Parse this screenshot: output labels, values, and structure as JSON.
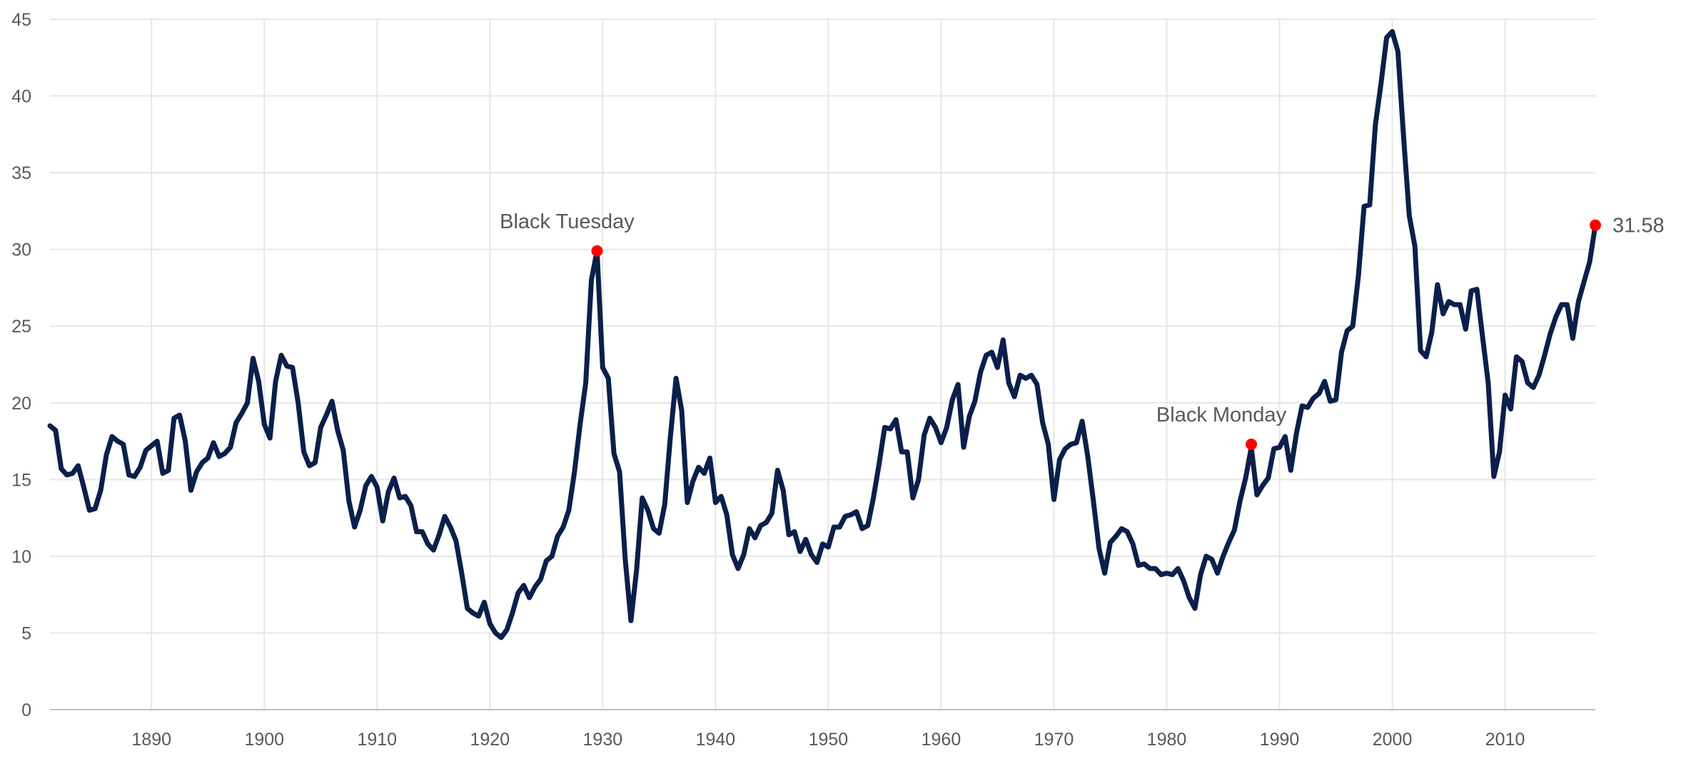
{
  "chart_data": {
    "type": "line",
    "title": "",
    "xlabel": "",
    "ylabel": "",
    "xlim": [
      1881,
      2018
    ],
    "ylim": [
      0,
      45
    ],
    "x_ticks": [
      1890,
      1900,
      1910,
      1920,
      1930,
      1940,
      1950,
      1960,
      1970,
      1980,
      1990,
      2000,
      2010
    ],
    "y_ticks": [
      0,
      5,
      10,
      15,
      20,
      25,
      30,
      35,
      40,
      45
    ],
    "grid": true,
    "legend": "none",
    "colors": {
      "line": "#0b1f4b",
      "marker": "#ff0000",
      "grid": "#e6e6e6",
      "text": "#595959"
    },
    "series": [
      {
        "x": [
          1881.0,
          1881.5,
          1882.0,
          1882.5,
          1883.0,
          1883.5,
          1884.0,
          1884.5,
          1885.0,
          1885.5,
          1886.0,
          1886.5,
          1887.0,
          1887.5,
          1888.0,
          1888.5,
          1889.0,
          1889.5,
          1890.0,
          1890.5,
          1891.0,
          1891.5,
          1892.0,
          1892.5,
          1893.0,
          1893.5,
          1894.0,
          1894.5,
          1895.0,
          1895.5,
          1896.0,
          1896.5,
          1897.0,
          1897.5,
          1898.0,
          1898.5,
          1899.0,
          1899.5,
          1900.0,
          1900.5,
          1901.0,
          1901.5,
          1902.0,
          1902.5,
          1903.0,
          1903.5,
          1904.0,
          1904.5,
          1905.0,
          1905.5,
          1906.0,
          1906.5,
          1907.0,
          1907.5,
          1908.0,
          1908.5,
          1909.0,
          1909.5,
          1910.0,
          1910.5,
          1911.0,
          1911.5,
          1912.0,
          1912.5,
          1913.0,
          1913.5,
          1914.0,
          1914.5,
          1915.0,
          1915.5,
          1916.0,
          1916.5,
          1917.0,
          1917.5,
          1918.0,
          1918.5,
          1919.0,
          1919.5,
          1920.0,
          1920.5,
          1921.0,
          1921.5,
          1922.0,
          1922.5,
          1923.0,
          1923.5,
          1924.0,
          1924.5,
          1925.0,
          1925.5,
          1926.0,
          1926.5,
          1927.0,
          1927.5,
          1928.0,
          1928.5,
          1929.0,
          1929.5,
          1930.0,
          1930.5,
          1931.0,
          1931.5,
          1932.0,
          1932.5,
          1933.0,
          1933.5,
          1934.0,
          1934.5,
          1935.0,
          1935.5,
          1936.0,
          1936.5,
          1937.0,
          1937.5,
          1938.0,
          1938.5,
          1939.0,
          1939.5,
          1940.0,
          1940.5,
          1941.0,
          1941.5,
          1942.0,
          1942.5,
          1943.0,
          1943.5,
          1944.0,
          1944.5,
          1945.0,
          1945.5,
          1946.0,
          1946.5,
          1947.0,
          1947.5,
          1948.0,
          1948.5,
          1949.0,
          1949.5,
          1950.0,
          1950.5,
          1951.0,
          1951.5,
          1952.0,
          1952.5,
          1953.0,
          1953.5,
          1954.0,
          1954.5,
          1955.0,
          1955.5,
          1956.0,
          1956.5,
          1957.0,
          1957.5,
          1958.0,
          1958.5,
          1959.0,
          1959.5,
          1960.0,
          1960.5,
          1961.0,
          1961.5,
          1962.0,
          1962.5,
          1963.0,
          1963.5,
          1964.0,
          1964.5,
          1965.0,
          1965.5,
          1966.0,
          1966.5,
          1967.0,
          1967.5,
          1968.0,
          1968.5,
          1969.0,
          1969.5,
          1970.0,
          1970.5,
          1971.0,
          1971.5,
          1972.0,
          1972.5,
          1973.0,
          1973.5,
          1974.0,
          1974.5,
          1975.0,
          1975.5,
          1976.0,
          1976.5,
          1977.0,
          1977.5,
          1978.0,
          1978.5,
          1979.0,
          1979.5,
          1980.0,
          1980.5,
          1981.0,
          1981.5,
          1982.0,
          1982.5,
          1983.0,
          1983.5,
          1984.0,
          1984.5,
          1985.0,
          1985.5,
          1986.0,
          1986.5,
          1987.0,
          1987.5,
          1988.0,
          1988.5,
          1989.0,
          1989.5,
          1990.0,
          1990.5,
          1991.0,
          1991.5,
          1992.0,
          1992.5,
          1993.0,
          1993.5,
          1994.0,
          1994.5,
          1995.0,
          1995.5,
          1996.0,
          1996.5,
          1997.0,
          1997.5,
          1998.0,
          1998.5,
          1999.0,
          1999.5,
          2000.0,
          2000.5,
          2001.0,
          2001.5,
          2002.0,
          2002.5,
          2003.0,
          2003.5,
          2004.0,
          2004.5,
          2005.0,
          2005.5,
          2006.0,
          2006.5,
          2007.0,
          2007.5,
          2008.0,
          2008.5,
          2009.0,
          2009.5,
          2010.0,
          2010.5,
          2011.0,
          2011.5,
          2012.0,
          2012.5,
          2013.0,
          2013.5,
          2014.0,
          2014.5,
          2015.0,
          2015.5,
          2016.0,
          2016.5,
          2017.0,
          2017.5,
          2018.0
        ],
        "values": [
          18.5,
          18.2,
          15.7,
          15.3,
          15.4,
          15.9,
          14.5,
          13.0,
          13.1,
          14.3,
          16.6,
          17.8,
          17.5,
          17.3,
          15.3,
          15.2,
          15.8,
          16.9,
          17.2,
          17.5,
          15.4,
          15.6,
          19.0,
          19.2,
          17.5,
          14.3,
          15.5,
          16.1,
          16.4,
          17.4,
          16.5,
          16.7,
          17.1,
          18.7,
          19.3,
          20.0,
          22.9,
          21.4,
          18.6,
          17.7,
          21.4,
          23.1,
          22.4,
          22.3,
          20.0,
          16.8,
          15.9,
          16.1,
          18.4,
          19.2,
          20.1,
          18.2,
          16.9,
          13.6,
          11.9,
          13.0,
          14.6,
          15.2,
          14.5,
          12.3,
          14.2,
          15.1,
          13.8,
          13.9,
          13.3,
          11.6,
          11.6,
          10.8,
          10.4,
          11.4,
          12.6,
          11.9,
          11.0,
          8.9,
          6.6,
          6.3,
          6.1,
          7.0,
          5.6,
          5.0,
          4.7,
          5.2,
          6.3,
          7.6,
          8.1,
          7.3,
          8.0,
          8.5,
          9.7,
          10.0,
          11.3,
          11.9,
          13.0,
          15.5,
          18.6,
          21.3,
          28.0,
          29.9,
          22.3,
          21.6,
          16.7,
          15.5,
          9.8,
          5.8,
          9.1,
          13.8,
          13.0,
          11.8,
          11.5,
          13.4,
          17.8,
          21.6,
          19.5,
          13.5,
          14.9,
          15.8,
          15.4,
          16.4,
          13.5,
          13.9,
          12.7,
          10.1,
          9.2,
          10.1,
          11.8,
          11.2,
          12.0,
          12.2,
          12.8,
          15.6,
          14.3,
          11.4,
          11.6,
          10.3,
          11.1,
          10.1,
          9.6,
          10.8,
          10.6,
          11.9,
          11.9,
          12.6,
          12.7,
          12.9,
          11.8,
          12.0,
          13.8,
          16.0,
          18.4,
          18.3,
          18.9,
          16.8,
          16.8,
          13.8,
          15.0,
          17.9,
          19.0,
          18.4,
          17.4,
          18.4,
          20.2,
          21.2,
          17.1,
          19.1,
          20.1,
          22.0,
          23.1,
          23.3,
          22.3,
          24.1,
          21.3,
          20.4,
          21.8,
          21.6,
          21.8,
          21.2,
          18.7,
          17.3,
          13.7,
          16.3,
          17.0,
          17.3,
          17.4,
          18.8,
          16.5,
          13.6,
          10.5,
          8.9,
          10.9,
          11.3,
          11.8,
          11.6,
          10.8,
          9.4,
          9.5,
          9.2,
          9.2,
          8.8,
          8.9,
          8.8,
          9.2,
          8.4,
          7.3,
          6.6,
          8.8,
          10.0,
          9.8,
          8.9,
          10.0,
          10.9,
          11.7,
          13.6,
          15.1,
          17.1,
          14.0,
          14.6,
          15.1,
          17.0,
          17.1,
          17.8,
          15.6,
          18.0,
          19.8,
          19.7,
          20.3,
          20.6,
          21.4,
          20.1,
          20.2,
          23.3,
          24.7,
          25.0,
          28.3,
          32.8,
          32.9,
          38.1,
          40.8,
          43.8,
          44.2,
          42.9,
          37.3,
          32.2,
          30.2,
          23.4,
          23.0,
          24.6,
          27.7,
          25.8,
          26.6,
          26.4,
          26.4,
          24.8,
          27.3,
          27.4,
          24.3,
          21.3,
          15.2,
          16.8,
          20.5,
          19.6,
          23.0,
          22.7,
          21.3,
          21.0,
          21.8,
          23.1,
          24.5,
          25.6,
          26.4,
          26.4,
          24.2,
          26.6,
          27.9,
          29.2,
          31.58
        ]
      }
    ],
    "annotations": [
      {
        "x": 1929.5,
        "y": 29.9,
        "label": "Black Tuesday"
      },
      {
        "x": 1987.5,
        "y": 17.3,
        "label": "Black Monday"
      },
      {
        "x": 2018.0,
        "y": 31.58,
        "label": "31.58"
      }
    ]
  }
}
